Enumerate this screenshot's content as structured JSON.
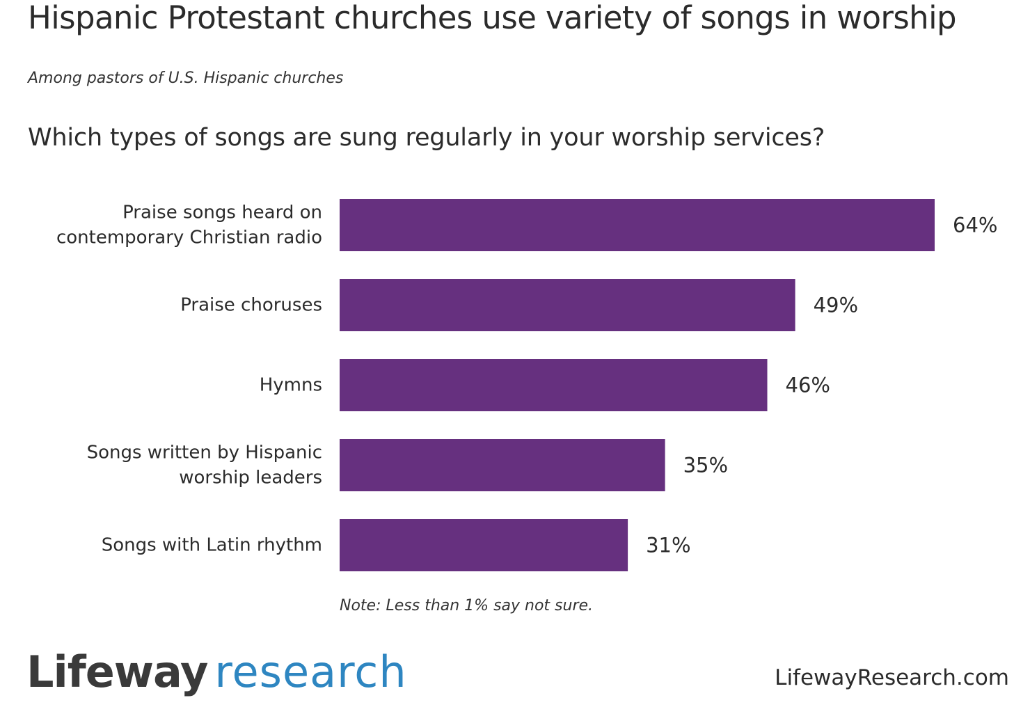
{
  "header": {
    "title": "Hispanic Protestant churches use variety of songs in worship",
    "subtitle": "Among pastors of U.S. Hispanic churches",
    "question": "Which types of songs are sung regularly in your worship services?"
  },
  "chart_data": {
    "type": "bar",
    "orientation": "horizontal",
    "categories": [
      [
        "Praise songs heard on",
        "contemporary Christian radio"
      ],
      [
        "Praise choruses"
      ],
      [
        "Hymns"
      ],
      [
        "Songs written by Hispanic",
        "worship leaders"
      ],
      [
        "Songs with Latin rhythm"
      ]
    ],
    "values": [
      64,
      49,
      46,
      35,
      31
    ],
    "value_labels": [
      "64%",
      "49%",
      "46%",
      "35%",
      "31%"
    ],
    "unit": "%",
    "xlim": [
      0,
      64
    ],
    "grid": false,
    "bar_color": "#66307f"
  },
  "footer": {
    "note": "Note: Less than 1% say not sure.",
    "logo_brand": "Lifeway",
    "logo_sub": "research",
    "website": "LifewayResearch.com"
  },
  "colors": {
    "bar": "#66307f",
    "logo_brand": "#3a3a3a",
    "logo_sub": "#2e86c1"
  }
}
